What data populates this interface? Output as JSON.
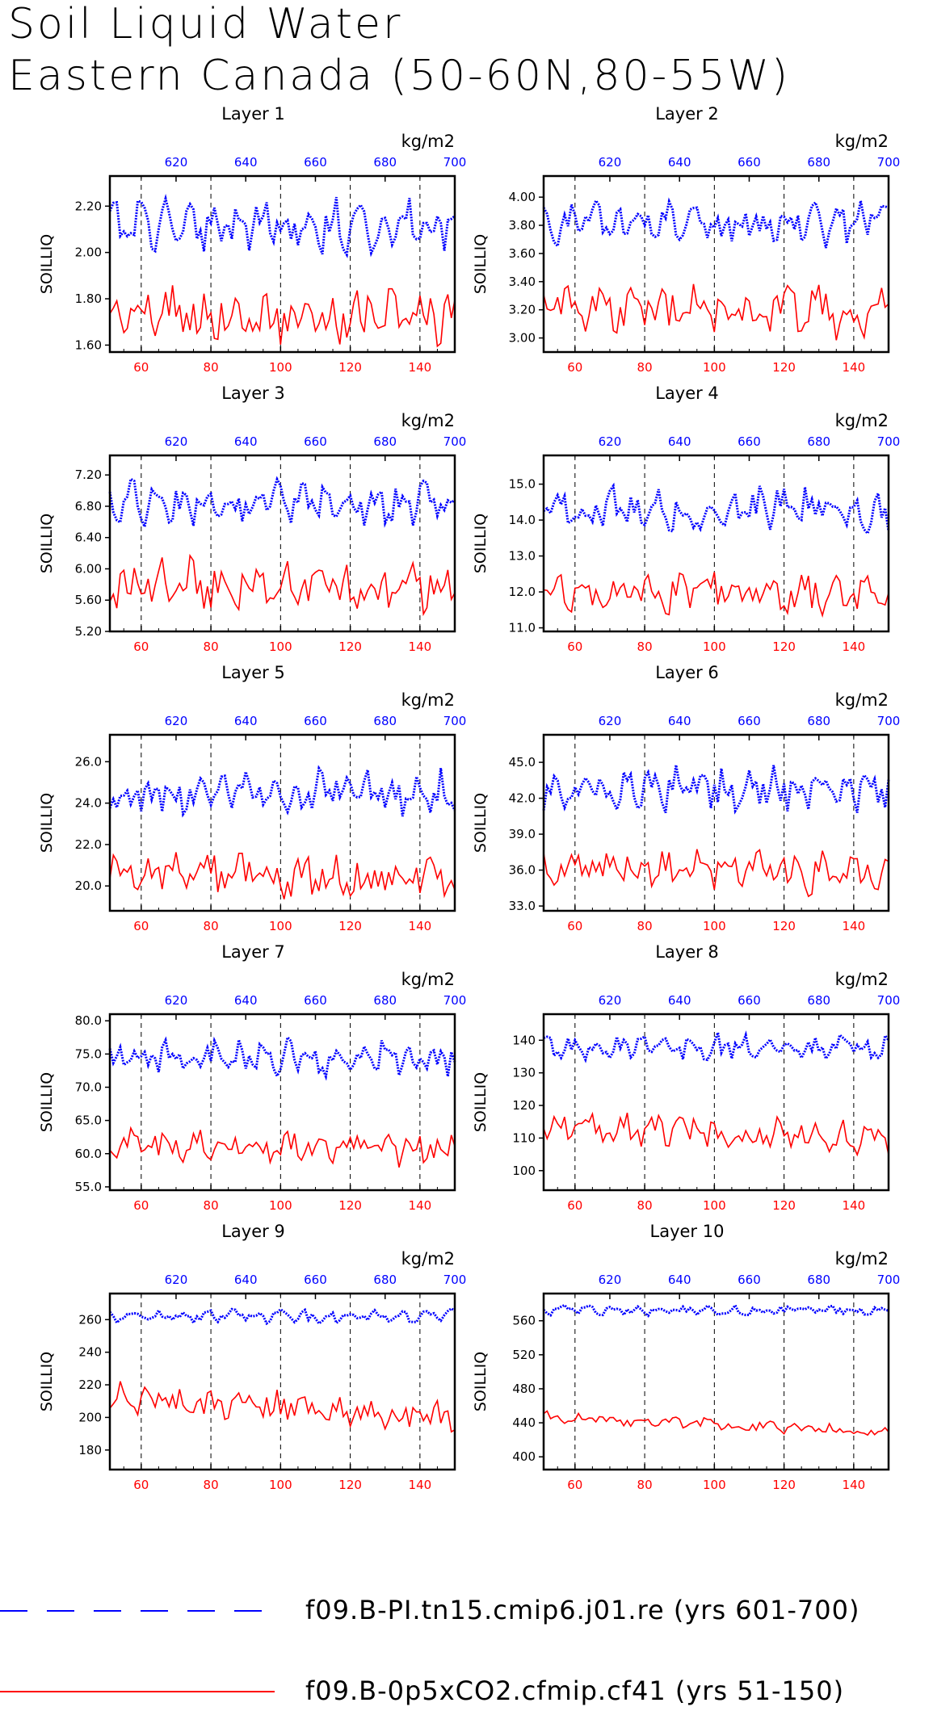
{
  "page": {
    "title_line1": "Soil Liquid Water",
    "title_line2": "Eastern Canada (50-60N,80-55W)"
  },
  "legend": [
    {
      "label": "f09.B-PI.tn15.cmip6.j01.re (yrs 601-700)",
      "color": "#0000ff",
      "style": "dashed"
    },
    {
      "label": "f09.B-0p5xCO2.cfmip.cf41 (yrs 51-150)",
      "color": "#ff0000",
      "style": "solid"
    }
  ],
  "axes_common": {
    "top_axis_unit": "kg/m2",
    "top_axis_ticks": [
      "620",
      "640",
      "660",
      "680",
      "700"
    ],
    "bottom_axis_ticks": [
      "60",
      "80",
      "100",
      "120",
      "140"
    ],
    "ylabel": "SOILLIQ",
    "top_color": "#0000ff",
    "bottom_color": "#ff0000",
    "top_xlim": [
      601,
      700
    ],
    "bottom_xlim": [
      51,
      150
    ]
  },
  "chart_data": [
    {
      "type": "line",
      "title": "Layer 1",
      "ylabel": "SOILLIQ",
      "ylim": [
        1.57,
        2.33
      ],
      "yticks": [
        "1.60",
        "1.80",
        "2.00",
        "2.20"
      ],
      "blue_mean": 2.12,
      "blue_amp": 0.1,
      "red_mean": 1.74,
      "red_amp": 0.11,
      "red_trend": -0.03,
      "series": [
        {
          "name": "f09.B-PI.tn15.cmip6.j01.re (yrs 601-700)",
          "color": "#0000ff",
          "x_range": [
            601,
            700
          ],
          "values": []
        },
        {
          "name": "f09.B-0p5xCO2.cfmip.cf41 (yrs 51-150)",
          "color": "#ff0000",
          "x_range": [
            51,
            150
          ],
          "values": []
        }
      ]
    },
    {
      "type": "line",
      "title": "Layer 2",
      "ylabel": "SOILLIQ",
      "ylim": [
        2.9,
        4.15
      ],
      "yticks": [
        "3.00",
        "3.20",
        "3.40",
        "3.60",
        "3.80",
        "4.00"
      ],
      "blue_mean": 3.82,
      "blue_amp": 0.14,
      "red_mean": 3.22,
      "red_amp": 0.17,
      "red_trend": -0.05,
      "series": [
        {
          "name": "f09.B-PI.tn15.cmip6.j01.re (yrs 601-700)",
          "color": "#0000ff",
          "x_range": [
            601,
            700
          ],
          "values": []
        },
        {
          "name": "f09.B-0p5xCO2.cfmip.cf41 (yrs 51-150)",
          "color": "#ff0000",
          "x_range": [
            51,
            150
          ],
          "values": []
        }
      ]
    },
    {
      "type": "line",
      "title": "Layer 3",
      "ylabel": "SOILLIQ",
      "ylim": [
        5.2,
        7.45
      ],
      "yticks": [
        "5.20",
        "5.60",
        "6.00",
        "6.40",
        "6.80",
        "7.20"
      ],
      "blue_mean": 6.85,
      "blue_amp": 0.25,
      "red_mean": 5.82,
      "red_amp": 0.3,
      "red_trend": -0.1,
      "series": [
        {
          "name": "f09.B-PI.tn15.cmip6.j01.re (yrs 601-700)",
          "color": "#0000ff",
          "x_range": [
            601,
            700
          ],
          "values": []
        },
        {
          "name": "f09.B-0p5xCO2.cfmip.cf41 (yrs 51-150)",
          "color": "#ff0000",
          "x_range": [
            51,
            150
          ],
          "values": []
        }
      ]
    },
    {
      "type": "line",
      "title": "Layer 4",
      "ylabel": "SOILLIQ",
      "ylim": [
        10.9,
        15.8
      ],
      "yticks": [
        "11.0",
        "12.0",
        "13.0",
        "14.0",
        "15.0"
      ],
      "blue_mean": 14.3,
      "blue_amp": 0.55,
      "red_mean": 12.0,
      "red_amp": 0.55,
      "red_trend": -0.15,
      "series": [
        {
          "name": "f09.B-PI.tn15.cmip6.j01.re (yrs 601-700)",
          "color": "#0000ff",
          "x_range": [
            601,
            700
          ],
          "values": []
        },
        {
          "name": "f09.B-0p5xCO2.cfmip.cf41 (yrs 51-150)",
          "color": "#ff0000",
          "x_range": [
            51,
            150
          ],
          "values": []
        }
      ]
    },
    {
      "type": "line",
      "title": "Layer 5",
      "ylabel": "SOILLIQ",
      "ylim": [
        18.8,
        27.3
      ],
      "yticks": [
        "20.0",
        "22.0",
        "24.0",
        "26.0"
      ],
      "blue_mean": 24.5,
      "blue_amp": 0.95,
      "red_mean": 20.6,
      "red_amp": 0.95,
      "red_trend": -0.3,
      "series": [
        {
          "name": "f09.B-PI.tn15.cmip6.j01.re (yrs 601-700)",
          "color": "#0000ff",
          "x_range": [
            601,
            700
          ],
          "values": []
        },
        {
          "name": "f09.B-0p5xCO2.cfmip.cf41 (yrs 51-150)",
          "color": "#ff0000",
          "x_range": [
            51,
            150
          ],
          "values": []
        }
      ]
    },
    {
      "type": "line",
      "title": "Layer 6",
      "ylabel": "SOILLIQ",
      "ylim": [
        32.6,
        47.3
      ],
      "yticks": [
        "33.0",
        "36.0",
        "39.0",
        "42.0",
        "45.0"
      ],
      "blue_mean": 42.8,
      "blue_amp": 1.6,
      "red_mean": 36.2,
      "red_amp": 1.6,
      "red_trend": -0.6,
      "series": [
        {
          "name": "f09.B-PI.tn15.cmip6.j01.re (yrs 601-700)",
          "color": "#0000ff",
          "x_range": [
            601,
            700
          ],
          "values": []
        },
        {
          "name": "f09.B-0p5xCO2.cfmip.cf41 (yrs 51-150)",
          "color": "#ff0000",
          "x_range": [
            51,
            150
          ],
          "values": []
        }
      ]
    },
    {
      "type": "line",
      "title": "Layer 7",
      "ylabel": "SOILLIQ",
      "ylim": [
        54.5,
        81
      ],
      "yticks": [
        "55.0",
        "60.0",
        "65.0",
        "70.0",
        "75.0",
        "80.0"
      ],
      "blue_mean": 74.5,
      "blue_amp": 2.4,
      "red_mean": 61.5,
      "red_amp": 2.2,
      "red_trend": -1.0,
      "series": [
        {
          "name": "f09.B-PI.tn15.cmip6.j01.re (yrs 601-700)",
          "color": "#0000ff",
          "x_range": [
            601,
            700
          ],
          "values": []
        },
        {
          "name": "f09.B-0p5xCO2.cfmip.cf41 (yrs 51-150)",
          "color": "#ff0000",
          "x_range": [
            51,
            150
          ],
          "values": []
        }
      ]
    },
    {
      "type": "line",
      "title": "Layer 8",
      "ylabel": "SOILLIQ",
      "ylim": [
        94,
        148
      ],
      "yticks": [
        "100",
        "110",
        "120",
        "130",
        "140"
      ],
      "blue_mean": 138,
      "blue_amp": 3.5,
      "red_mean": 113,
      "red_amp": 5,
      "red_trend": -3,
      "series": [
        {
          "name": "f09.B-PI.tn15.cmip6.j01.re (yrs 601-700)",
          "color": "#0000ff",
          "x_range": [
            601,
            700
          ],
          "values": []
        },
        {
          "name": "f09.B-0p5xCO2.cfmip.cf41 (yrs 51-150)",
          "color": "#ff0000",
          "x_range": [
            51,
            150
          ],
          "values": []
        }
      ]
    },
    {
      "type": "line",
      "title": "Layer 9",
      "ylabel": "SOILLIQ",
      "ylim": [
        168,
        276
      ],
      "yticks": [
        "180",
        "200",
        "220",
        "240",
        "260"
      ],
      "blue_mean": 262,
      "blue_amp": 4,
      "red_mean": 212,
      "red_amp": 9,
      "red_trend": -12,
      "series": [
        {
          "name": "f09.B-PI.tn15.cmip6.j01.re (yrs 601-700)",
          "color": "#0000ff",
          "x_range": [
            601,
            700
          ],
          "values": []
        },
        {
          "name": "f09.B-0p5xCO2.cfmip.cf41 (yrs 51-150)",
          "color": "#ff0000",
          "x_range": [
            51,
            150
          ],
          "values": []
        }
      ]
    },
    {
      "type": "line",
      "title": "Layer 10",
      "ylabel": "SOILLIQ",
      "ylim": [
        385,
        592
      ],
      "yticks": [
        "400",
        "440",
        "480",
        "520",
        "560"
      ],
      "blue_mean": 572,
      "blue_amp": 5,
      "red_mean": 447,
      "red_amp": 6,
      "red_trend": -18,
      "series": [
        {
          "name": "f09.B-PI.tn15.cmip6.j01.re (yrs 601-700)",
          "color": "#0000ff",
          "x_range": [
            601,
            700
          ],
          "values": []
        },
        {
          "name": "f09.B-0p5xCO2.cfmip.cf41 (yrs 51-150)",
          "color": "#ff0000",
          "x_range": [
            51,
            150
          ],
          "values": []
        }
      ]
    }
  ]
}
